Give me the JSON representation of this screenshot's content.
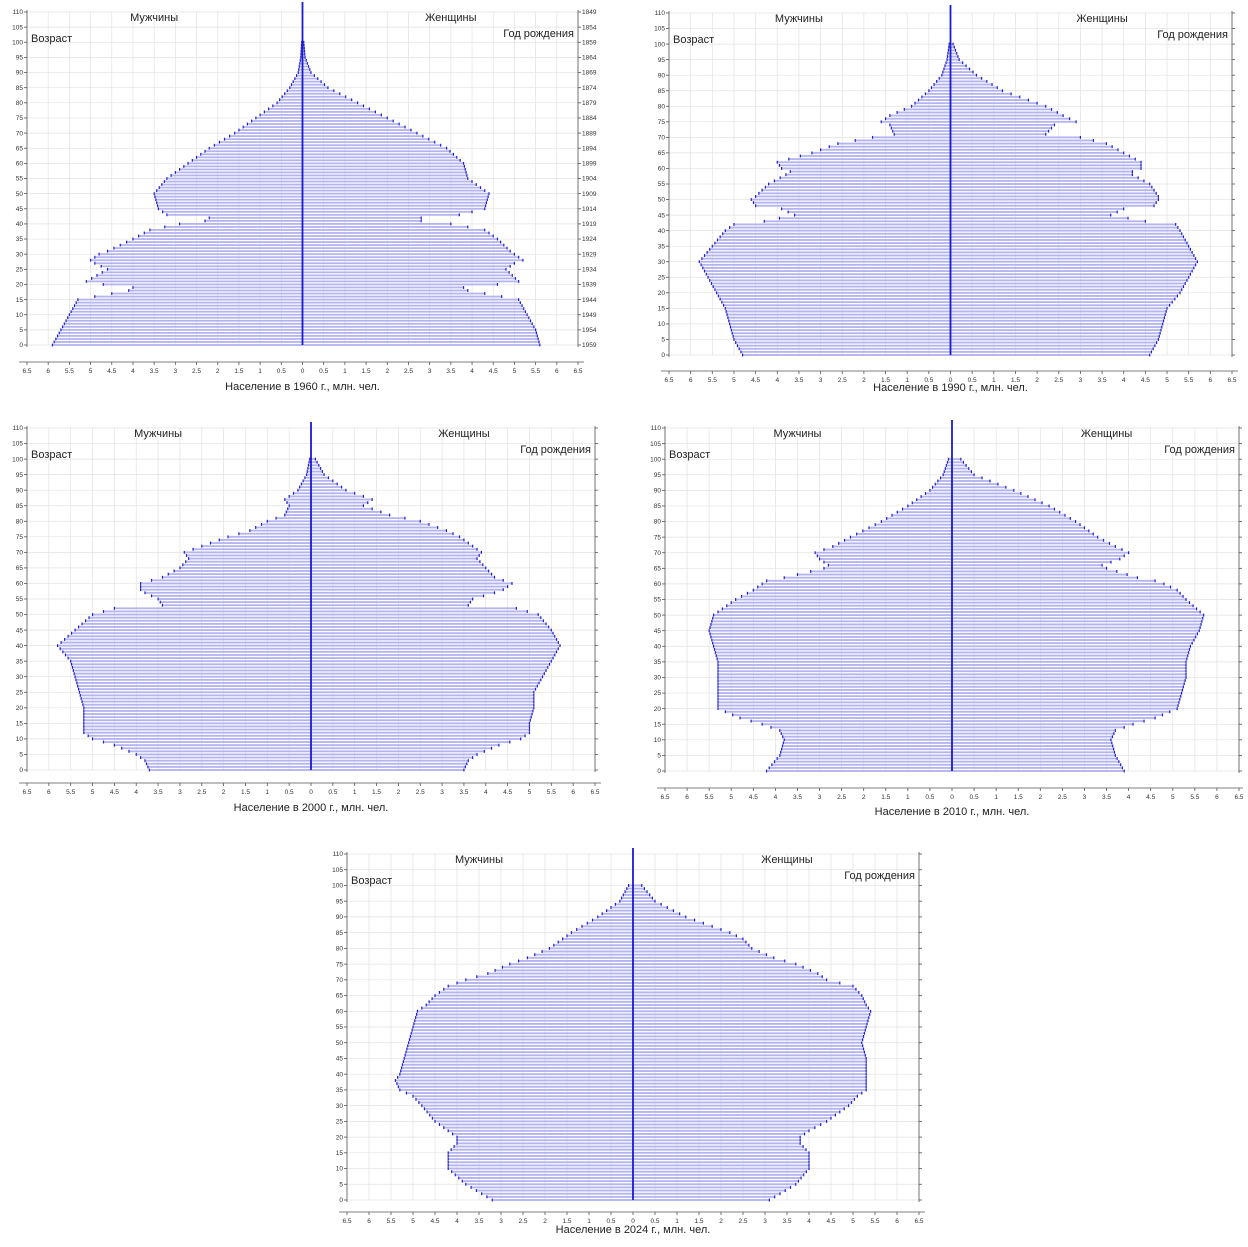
{
  "labels": {
    "men": "Мужчины",
    "women": "Женщины",
    "age": "Возраст",
    "birth_year": "Год рождения"
  },
  "style": {
    "bar_fill": "#b4b4f0",
    "bar_stroke": "#2020d0",
    "axis_color": "#1a1ad0",
    "grid_color": "#e2e2e2"
  },
  "chart_data": [
    {
      "type": "bar",
      "orientation": "population-pyramid",
      "xlabel": "Население в 1960 г., млн. чел.",
      "ylim": [
        0,
        110
      ],
      "xlim": [
        -6.5,
        6.5
      ],
      "y_ticks": [
        0,
        5,
        10,
        15,
        20,
        25,
        30,
        35,
        40,
        45,
        50,
        55,
        60,
        65,
        70,
        75,
        80,
        85,
        90,
        95,
        100,
        105,
        110
      ],
      "x_tick_labels": [
        "6.5",
        "6",
        "5.5",
        "5",
        "4.5",
        "4",
        "3.5",
        "3",
        "2.5",
        "2",
        "1.5",
        "1",
        "0.5",
        "0",
        "0.5",
        "1",
        "1.5",
        "2",
        "2.5",
        "3",
        "3.5",
        "4",
        "4.5",
        "5",
        "5.5",
        "6",
        "6.5"
      ],
      "birth_year_ticks": [
        "1959",
        "1954",
        "1949",
        "1944",
        "1939",
        "1934",
        "1929",
        "1924",
        "1919",
        "1914",
        "1909",
        "1904",
        "1899",
        "1894",
        "1889",
        "1884",
        "1879",
        "1874",
        "1869",
        "1864",
        "1859",
        "1854",
        "1849"
      ],
      "age_points": [
        0,
        5,
        10,
        15,
        18,
        19,
        20,
        21,
        25,
        27,
        28,
        29,
        30,
        31,
        35,
        38,
        40,
        41,
        42,
        43,
        45,
        50,
        55,
        60,
        65,
        70,
        75,
        80,
        85,
        90,
        95,
        100,
        105,
        110
      ],
      "men": [
        5.9,
        5.7,
        5.5,
        5.3,
        4.1,
        4.0,
        4.7,
        5.1,
        4.6,
        4.9,
        5.0,
        4.9,
        4.8,
        4.6,
        4.0,
        3.6,
        2.9,
        2.3,
        2.2,
        3.2,
        3.4,
        3.5,
        3.2,
        2.7,
        2.2,
        1.6,
        1.1,
        0.6,
        0.3,
        0.1,
        0.04,
        0.02,
        0.01,
        0.01
      ],
      "women": [
        5.6,
        5.5,
        5.3,
        5.1,
        3.9,
        3.8,
        4.6,
        5.1,
        4.8,
        5.0,
        5.2,
        5.1,
        5.0,
        4.9,
        4.6,
        4.3,
        3.5,
        2.8,
        2.8,
        3.7,
        4.3,
        4.4,
        3.9,
        3.8,
        3.4,
        2.7,
        2.0,
        1.3,
        0.6,
        0.2,
        0.06,
        0.03,
        0.01,
        0.01
      ]
    },
    {
      "type": "bar",
      "orientation": "population-pyramid",
      "xlabel": "Население в 1990 г., млн. чел.",
      "ylim": [
        0,
        110
      ],
      "xlim": [
        -6.5,
        6.5
      ],
      "y_ticks": [
        0,
        5,
        10,
        15,
        20,
        25,
        30,
        35,
        40,
        45,
        50,
        55,
        60,
        65,
        70,
        75,
        80,
        85,
        90,
        95,
        100,
        105,
        110
      ],
      "x_tick_labels": [
        "6.5",
        "6",
        "5.5",
        "5",
        "4.5",
        "4",
        "3.5",
        "3",
        "2.5",
        "2",
        "1.5",
        "1",
        "0.5",
        "0",
        "0.5",
        "1",
        "1.5",
        "2",
        "2.5",
        "3",
        "3.5",
        "4",
        "4.5",
        "5",
        "5.5",
        "6",
        "6.5"
      ],
      "birth_year_ticks": [],
      "age_points": [
        0,
        5,
        10,
        15,
        20,
        25,
        30,
        35,
        40,
        42,
        43,
        45,
        47,
        48,
        50,
        51,
        55,
        58,
        59,
        60,
        62,
        65,
        68,
        70,
        71,
        74,
        75,
        77,
        80,
        85,
        90,
        95,
        100,
        105,
        110
      ],
      "men": [
        4.8,
        5.0,
        5.1,
        5.2,
        5.4,
        5.6,
        5.8,
        5.5,
        5.2,
        5.0,
        4.3,
        3.6,
        3.9,
        4.5,
        4.6,
        4.5,
        4.2,
        3.8,
        3.7,
        3.9,
        4.0,
        3.2,
        2.6,
        1.8,
        1.3,
        1.4,
        1.6,
        1.4,
        0.9,
        0.5,
        0.2,
        0.08,
        0.03,
        0.01,
        0.01
      ],
      "women": [
        4.6,
        4.8,
        4.9,
        5.0,
        5.3,
        5.5,
        5.7,
        5.5,
        5.3,
        5.2,
        4.5,
        3.7,
        4.0,
        4.7,
        4.8,
        4.8,
        4.6,
        4.2,
        4.2,
        4.4,
        4.4,
        4.0,
        3.6,
        3.0,
        2.2,
        2.4,
        2.9,
        2.6,
        2.2,
        1.2,
        0.6,
        0.2,
        0.06,
        0.02,
        0.01
      ]
    },
    {
      "type": "bar",
      "orientation": "population-pyramid",
      "xlabel": "Население в 2000 г., млн. чел.",
      "ylim": [
        0,
        110
      ],
      "xlim": [
        -6.5,
        6.5
      ],
      "y_ticks": [
        0,
        5,
        10,
        15,
        20,
        25,
        30,
        35,
        40,
        45,
        50,
        55,
        60,
        65,
        70,
        75,
        80,
        85,
        90,
        95,
        100,
        105,
        110
      ],
      "x_tick_labels": [
        "6.5",
        "6",
        "5.5",
        "5",
        "4.5",
        "4",
        "3.5",
        "3",
        "2.5",
        "2",
        "1.5",
        "1",
        "0.5",
        "0",
        "0.5",
        "1",
        "1.5",
        "2",
        "2.5",
        "3",
        "3.5",
        "4",
        "4.5",
        "5",
        "5.5",
        "6",
        "6.5"
      ],
      "birth_year_ticks": [],
      "age_points": [
        0,
        3,
        5,
        8,
        10,
        12,
        15,
        20,
        25,
        30,
        35,
        40,
        45,
        50,
        52,
        53,
        55,
        57,
        58,
        60,
        62,
        65,
        68,
        70,
        72,
        75,
        77,
        80,
        82,
        85,
        87,
        90,
        95,
        100,
        105,
        110
      ],
      "men": [
        3.7,
        3.8,
        4.0,
        4.5,
        5.0,
        5.2,
        5.2,
        5.2,
        5.3,
        5.4,
        5.5,
        5.8,
        5.4,
        5.0,
        4.5,
        3.4,
        3.5,
        3.8,
        3.9,
        3.9,
        3.4,
        3.0,
        2.8,
        2.9,
        2.5,
        1.9,
        1.4,
        1.0,
        0.6,
        0.5,
        0.6,
        0.3,
        0.1,
        0.03,
        0.01,
        0.01
      ],
      "women": [
        3.5,
        3.6,
        3.8,
        4.3,
        4.8,
        5.0,
        5.0,
        5.1,
        5.1,
        5.3,
        5.5,
        5.7,
        5.5,
        5.2,
        4.7,
        3.6,
        3.7,
        4.2,
        4.4,
        4.6,
        4.2,
        4.0,
        3.8,
        3.9,
        3.7,
        3.4,
        3.1,
        2.5,
        1.8,
        1.2,
        1.4,
        0.8,
        0.3,
        0.1,
        0.03,
        0.01
      ]
    },
    {
      "type": "bar",
      "orientation": "population-pyramid",
      "xlabel": "Население в 2010 г., млн. чел.",
      "ylim": [
        0,
        110
      ],
      "xlim": [
        -6.5,
        6.5
      ],
      "y_ticks": [
        0,
        5,
        10,
        15,
        20,
        25,
        30,
        35,
        40,
        45,
        50,
        55,
        60,
        65,
        70,
        75,
        80,
        85,
        90,
        95,
        100,
        105,
        110
      ],
      "x_tick_labels": [
        "6.5",
        "6",
        "5.5",
        "5",
        "4.5",
        "4",
        "3.5",
        "3",
        "2.5",
        "2",
        "1.5",
        "1",
        "0.5",
        "0",
        "0.5",
        "1",
        "1.5",
        "2",
        "2.5",
        "3",
        "3.5",
        "4",
        "4.5",
        "5",
        "5.5",
        "6",
        "6.5"
      ],
      "birth_year_ticks": [],
      "age_points": [
        0,
        5,
        10,
        13,
        15,
        17,
        20,
        25,
        30,
        35,
        40,
        45,
        50,
        55,
        58,
        60,
        61,
        62,
        65,
        66,
        68,
        70,
        72,
        75,
        80,
        85,
        90,
        95,
        100,
        105,
        110
      ],
      "men": [
        4.2,
        3.9,
        3.8,
        3.9,
        4.3,
        4.8,
        5.3,
        5.3,
        5.3,
        5.3,
        5.4,
        5.5,
        5.4,
        4.9,
        4.5,
        4.3,
        4.2,
        3.8,
        2.9,
        2.8,
        3.0,
        3.1,
        2.7,
        2.3,
        1.6,
        1.0,
        0.5,
        0.2,
        0.08,
        0.02,
        0.01
      ],
      "women": [
        3.9,
        3.7,
        3.6,
        3.7,
        4.1,
        4.6,
        5.1,
        5.2,
        5.3,
        5.3,
        5.4,
        5.6,
        5.7,
        5.3,
        5.1,
        4.8,
        4.6,
        4.2,
        3.5,
        3.4,
        3.8,
        4.0,
        3.7,
        3.3,
        2.8,
        2.2,
        1.4,
        0.5,
        0.2,
        0.05,
        0.01
      ]
    },
    {
      "type": "bar",
      "orientation": "population-pyramid",
      "xlabel": "Население в 2024 г., млн. чел.",
      "ylim": [
        0,
        110
      ],
      "xlim": [
        -6.5,
        6.5
      ],
      "y_ticks": [
        0,
        5,
        10,
        15,
        20,
        25,
        30,
        35,
        40,
        45,
        50,
        55,
        60,
        65,
        70,
        75,
        80,
        85,
        90,
        95,
        100,
        105,
        110
      ],
      "x_tick_labels": [
        "6.5",
        "6",
        "5.5",
        "5",
        "4.5",
        "4",
        "3.5",
        "3",
        "2.5",
        "2",
        "1.5",
        "1",
        "0.5",
        "0",
        "0.5",
        "1",
        "1.5",
        "2",
        "2.5",
        "3",
        "3.5",
        "4",
        "4.5",
        "5",
        "5.5",
        "6",
        "6.5"
      ],
      "birth_year_ticks": [],
      "age_points": [
        0,
        5,
        10,
        15,
        18,
        20,
        22,
        25,
        30,
        33,
        35,
        38,
        40,
        45,
        50,
        55,
        60,
        62,
        65,
        68,
        70,
        72,
        75,
        77,
        80,
        83,
        85,
        90,
        95,
        100,
        105,
        110
      ],
      "men": [
        3.2,
        3.8,
        4.2,
        4.2,
        4.0,
        4.0,
        4.2,
        4.5,
        4.8,
        5.0,
        5.3,
        5.4,
        5.3,
        5.2,
        5.1,
        5.0,
        4.9,
        4.7,
        4.5,
        4.2,
        3.8,
        3.3,
        2.8,
        2.4,
        1.9,
        1.6,
        1.4,
        0.8,
        0.3,
        0.1,
        0.02,
        0.01
      ],
      "women": [
        3.1,
        3.7,
        4.0,
        4.0,
        3.8,
        3.8,
        4.0,
        4.4,
        4.9,
        5.1,
        5.3,
        5.3,
        5.3,
        5.3,
        5.2,
        5.3,
        5.4,
        5.3,
        5.2,
        5.0,
        4.4,
        4.2,
        3.7,
        3.2,
        2.7,
        2.5,
        2.2,
        1.2,
        0.5,
        0.2,
        0.05,
        0.01
      ]
    }
  ]
}
